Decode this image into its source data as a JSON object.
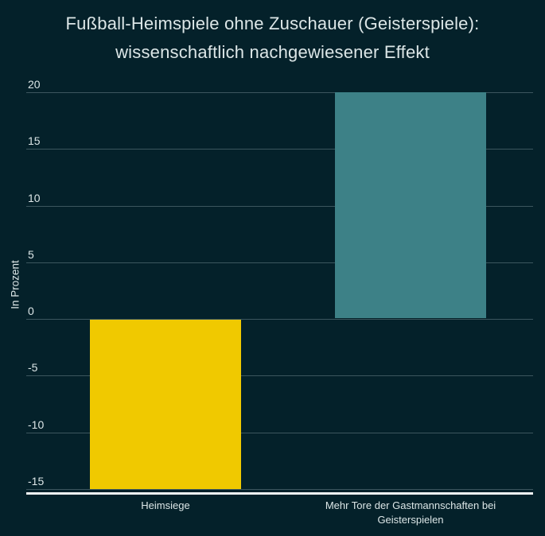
{
  "chart_data": {
    "type": "bar",
    "title": "Fußball-Heimspiele ohne Zuschauer (Geisterspiele): wissenschaftlich nachgewiesener Effekt",
    "title_lines": [
      "Fußball-Heimspiele ohne Zuschauer (Geisterspiele):",
      "wissenschaftlich nachgewiesener Effekt"
    ],
    "ylabel": "In Prozent",
    "xlabel": "",
    "categories": [
      "Heimsiege",
      "Mehr Tore der Gastmannschaften bei Geisterspielen"
    ],
    "category_lines": [
      [
        "Heimsiege"
      ],
      [
        "Mehr Tore der Gastmannschaften bei",
        "Geisterspielen"
      ]
    ],
    "values": [
      -15,
      20
    ],
    "unit": "Prozent",
    "bar_colors": [
      "#f0c900",
      "#3d8187"
    ],
    "yticks": [
      20,
      15,
      10,
      5,
      0,
      -5,
      -10,
      -15
    ],
    "ylim": [
      -15.5,
      20
    ],
    "grid": true,
    "legend": false,
    "colors": {
      "background": "#04212a",
      "text": "#dce6e7",
      "gridline": "#3c565e",
      "axis_line": "#f2f6f6"
    }
  }
}
